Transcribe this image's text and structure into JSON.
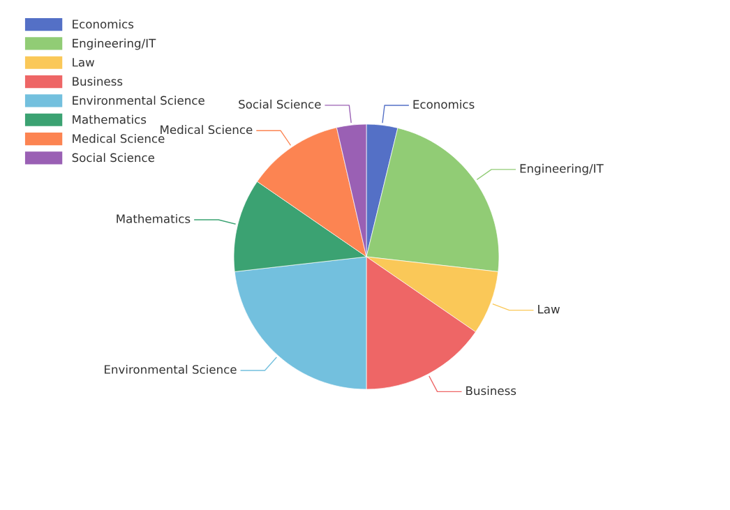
{
  "chart_data": {
    "type": "pie",
    "categories": [
      "Economics",
      "Engineering/IT",
      "Law",
      "Business",
      "Environmental Science",
      "Mathematics",
      "Medical Science",
      "Social Science"
    ],
    "values": [
      3.8,
      23.0,
      7.8,
      15.4,
      23.2,
      11.4,
      11.8,
      3.6
    ],
    "colors": [
      "#5470c6",
      "#91cc75",
      "#fac858",
      "#ee6666",
      "#73c0de",
      "#3ba272",
      "#fc8452",
      "#9a60b4"
    ],
    "legend": "top left"
  }
}
